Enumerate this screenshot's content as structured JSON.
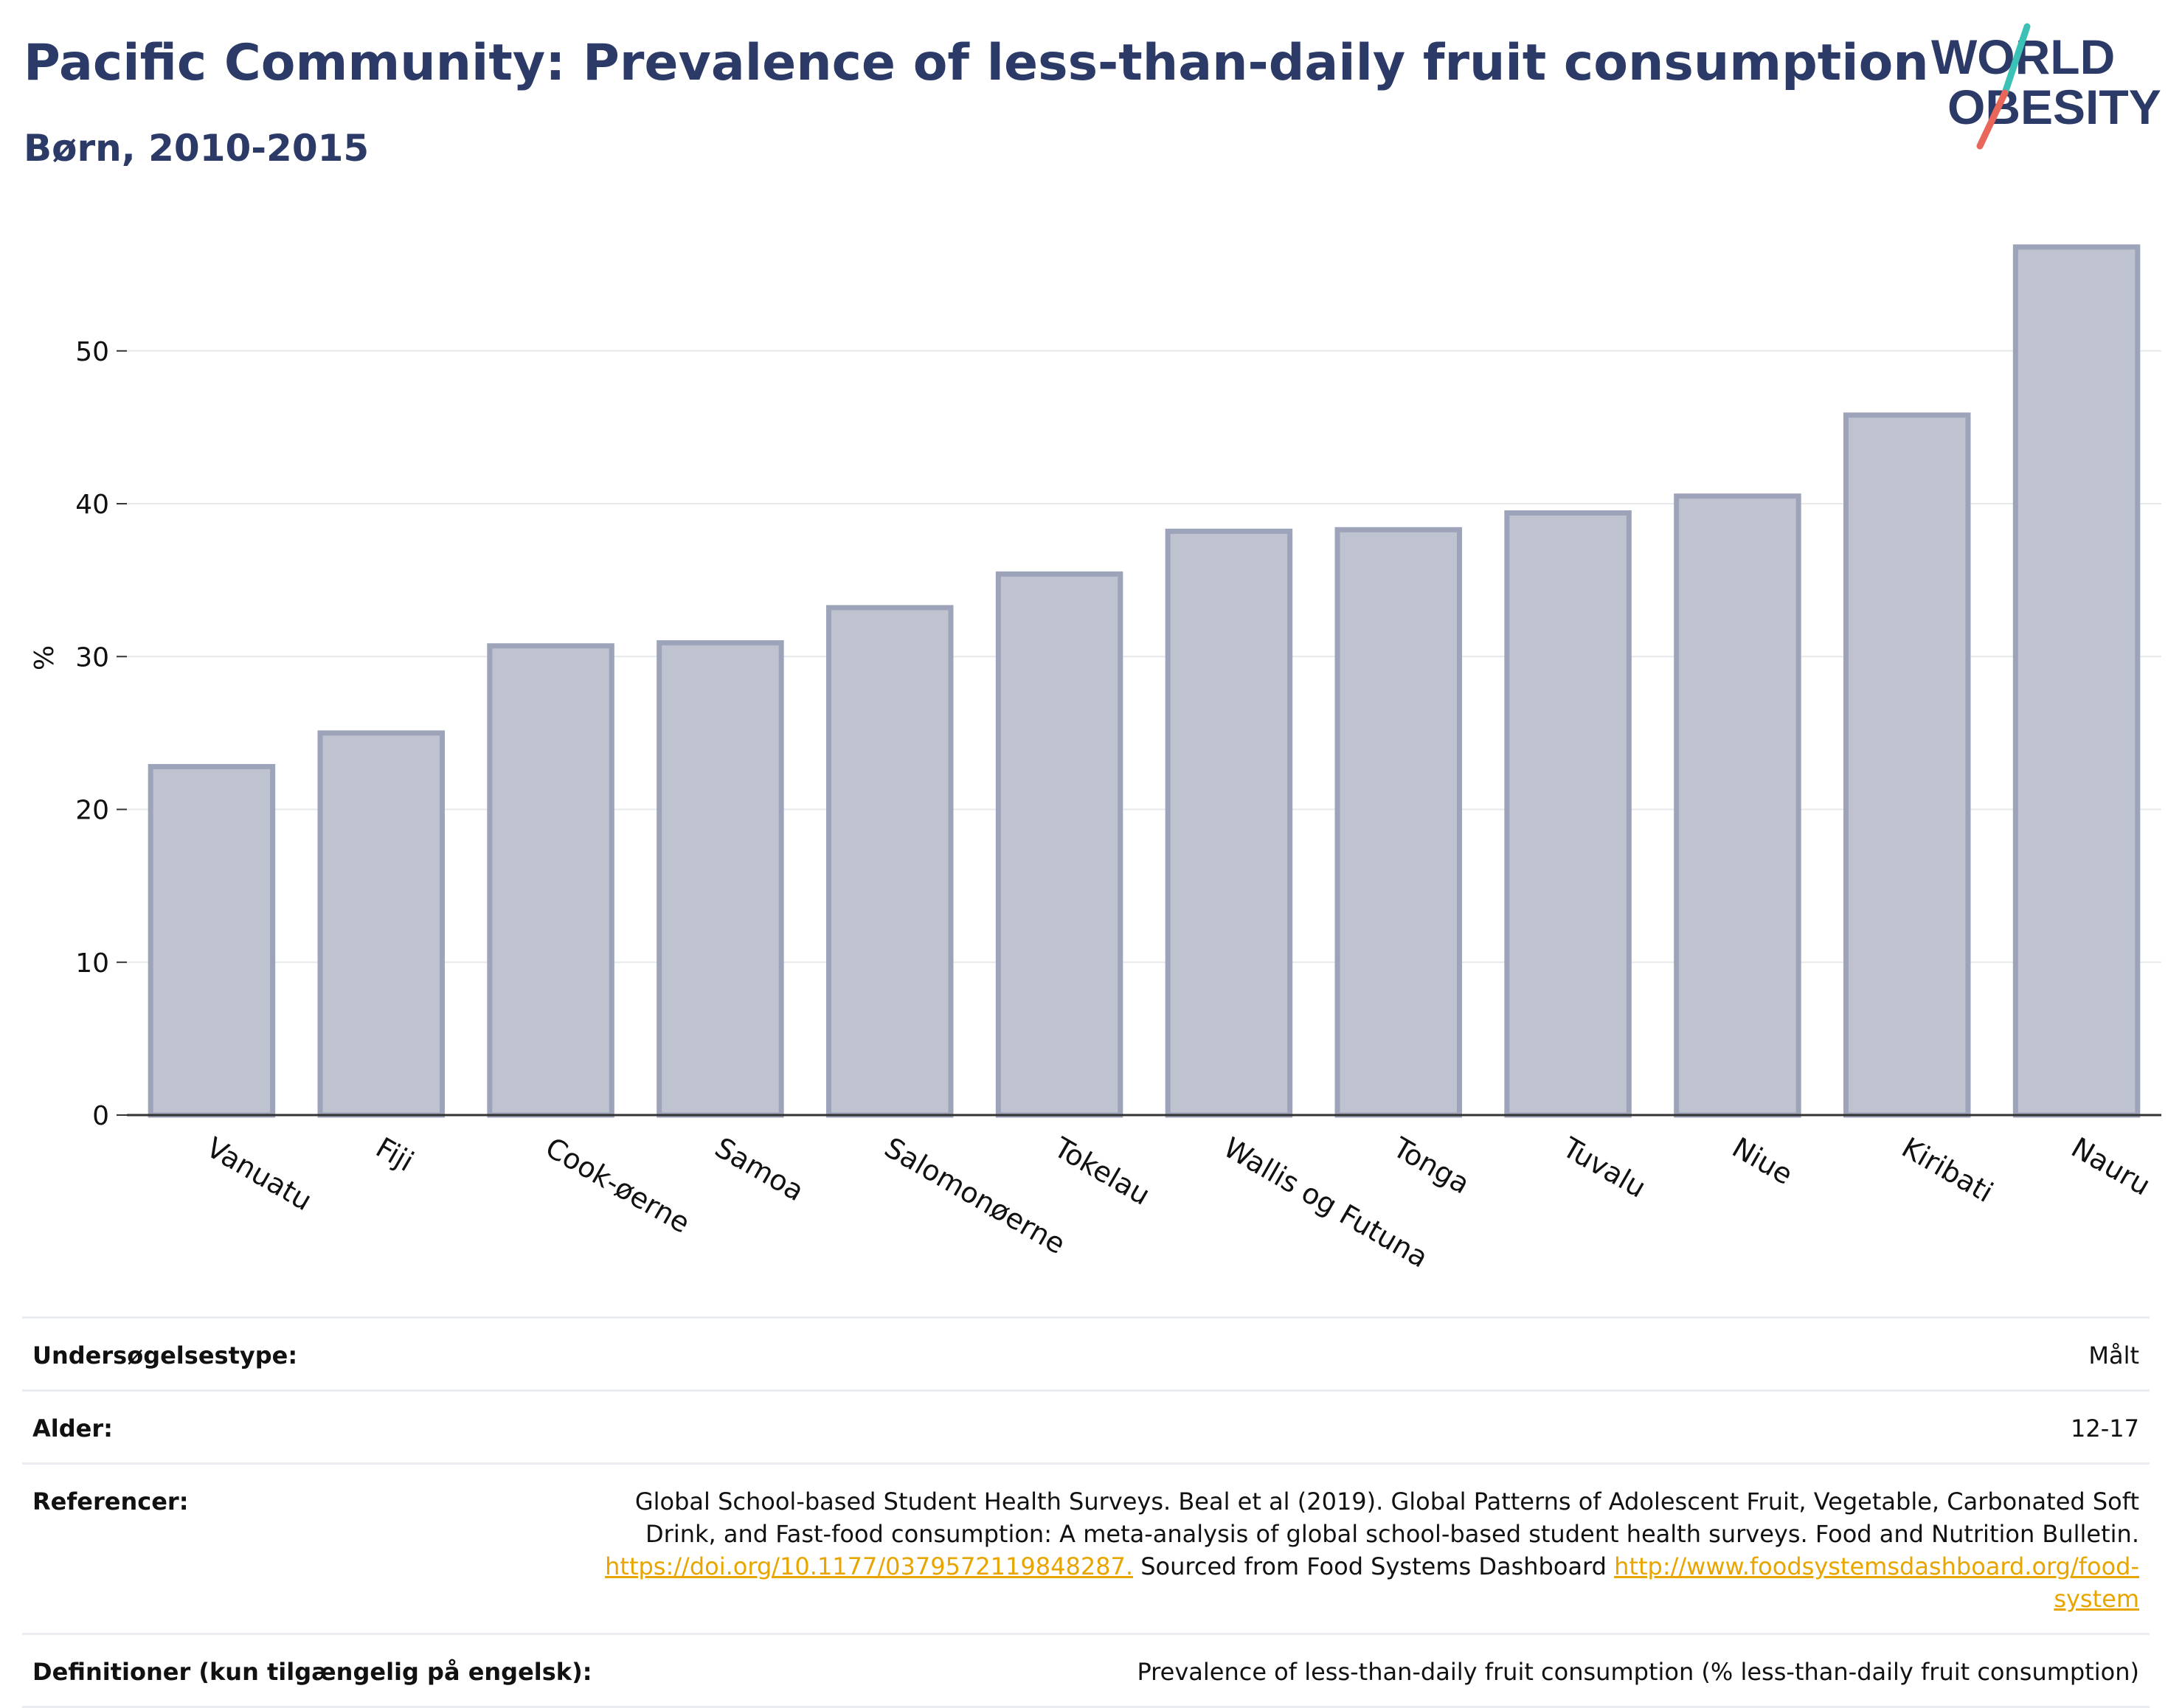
{
  "header": {
    "title": "Pacific Community: Prevalence of less-than-daily fruit consumption",
    "subtitle": "Børn, 2010-2015"
  },
  "logo": {
    "line1": "WORLD",
    "line2": "OBESITY"
  },
  "colors": {
    "title": "#2b3a67",
    "bar_fill": "#bfc3d0",
    "bar_stroke": "#9da3b8",
    "grid": "#e6e8ec",
    "link": "#e8a500",
    "logo_teal": "#3cc1b7",
    "logo_red": "#e8675a"
  },
  "chart_data": {
    "type": "bar",
    "categories": [
      "Vanuatu",
      "Fiji",
      "Cook-øerne",
      "Samoa",
      "Salomonøerne",
      "Tokelau",
      "Wallis og Futuna",
      "Tonga",
      "Tuvalu",
      "Niue",
      "Kiribati",
      "Nauru"
    ],
    "values": [
      22.8,
      25.0,
      30.7,
      30.9,
      33.2,
      35.4,
      38.2,
      38.3,
      39.4,
      40.5,
      45.8,
      56.8
    ],
    "ylabel": "%",
    "xlabel": "",
    "ylim": [
      0,
      58
    ],
    "yticks": [
      0,
      10,
      20,
      30,
      40,
      50
    ],
    "grid": true
  },
  "meta": {
    "survey_type_label": "Undersøgelsestype:",
    "survey_type_value": "Målt",
    "age_label": "Alder:",
    "age_value": "12-17",
    "references_label": "Referencer:",
    "references_text": "Global School-based Student Health Surveys. Beal et al (2019). Global Patterns of Adolescent Fruit, Vegetable, Carbonated Soft Drink, and Fast-food consumption: A meta-analysis of global school-based student health surveys. Food and Nutrition Bulletin.",
    "references_link1": "https://doi.org/10.1177/0379572119848287.",
    "references_mid": "Sourced from Food Systems Dashboard",
    "references_link2": "http://www.foodsystemsdashboard.org/food-system",
    "definitions_label": "Definitioner (kun tilgængelig på engelsk):",
    "definitions_value": "Prevalence of less-than-daily fruit consumption (% less-than-daily fruit consumption)"
  }
}
